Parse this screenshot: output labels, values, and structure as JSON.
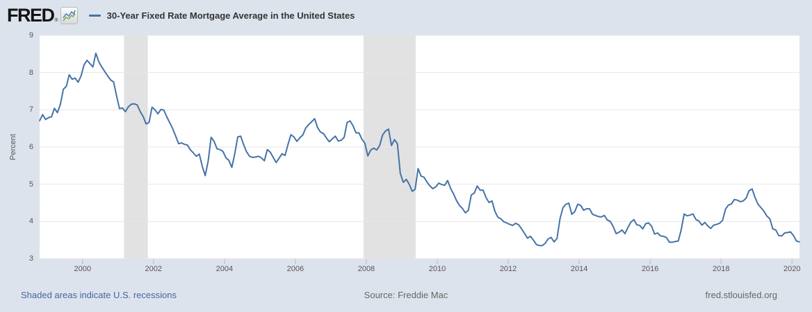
{
  "header": {
    "logo_text": "FRED",
    "logo_registered": "®",
    "legend": {
      "label": "30-Year Fixed Rate Mortgage Average in the United States"
    }
  },
  "footer": {
    "recession_note": "Shaded areas indicate U.S. recessions",
    "source": "Source: Freddie Mac",
    "site": "fred.stlouisfed.org"
  },
  "colors": {
    "background": "#dde3ed",
    "plot_background": "#ffffff",
    "gridline": "#e6e6e6",
    "recession_band": "#e2e2e2",
    "line": "#4572a7",
    "axis_text": "#555555",
    "legend_text": "#333333",
    "link_text": "#44689d",
    "muted_text": "#666666",
    "tick_mark": "#b0b9c7"
  },
  "chart_data": {
    "type": "line",
    "title": "30-Year Fixed Rate Mortgage Average in the United States",
    "xlabel": "",
    "ylabel": "Percent",
    "ylim": [
      3,
      9
    ],
    "xlim": [
      1998.79,
      2020.21
    ],
    "y_ticks": [
      9,
      8,
      7,
      6,
      5,
      4,
      3
    ],
    "x_ticks": [
      2000,
      2002,
      2004,
      2006,
      2008,
      2010,
      2012,
      2014,
      2016,
      2018,
      2020
    ],
    "grid": "horizontal",
    "legend_position": "top",
    "line_color": "#4572a7",
    "recession_bands": [
      {
        "start": 2001.17,
        "end": 2001.84
      },
      {
        "start": 2007.92,
        "end": 2009.39
      }
    ],
    "series": [
      {
        "name": "30-Year Fixed Rate Mortgage Average in the United States",
        "units": "Percent",
        "points": [
          [
            1998.792,
            6.71
          ],
          [
            1998.875,
            6.87
          ],
          [
            1998.958,
            6.74
          ],
          [
            1999.042,
            6.79
          ],
          [
            1999.125,
            6.81
          ],
          [
            1999.208,
            7.04
          ],
          [
            1999.292,
            6.92
          ],
          [
            1999.375,
            7.15
          ],
          [
            1999.458,
            7.55
          ],
          [
            1999.542,
            7.63
          ],
          [
            1999.625,
            7.94
          ],
          [
            1999.708,
            7.82
          ],
          [
            1999.792,
            7.85
          ],
          [
            1999.875,
            7.74
          ],
          [
            1999.958,
            7.91
          ],
          [
            2000.042,
            8.21
          ],
          [
            2000.125,
            8.33
          ],
          [
            2000.208,
            8.24
          ],
          [
            2000.292,
            8.15
          ],
          [
            2000.375,
            8.52
          ],
          [
            2000.458,
            8.29
          ],
          [
            2000.542,
            8.15
          ],
          [
            2000.625,
            8.03
          ],
          [
            2000.708,
            7.91
          ],
          [
            2000.792,
            7.8
          ],
          [
            2000.875,
            7.75
          ],
          [
            2000.958,
            7.38
          ],
          [
            2001.042,
            7.03
          ],
          [
            2001.125,
            7.05
          ],
          [
            2001.208,
            6.95
          ],
          [
            2001.292,
            7.08
          ],
          [
            2001.375,
            7.15
          ],
          [
            2001.458,
            7.16
          ],
          [
            2001.542,
            7.13
          ],
          [
            2001.625,
            6.95
          ],
          [
            2001.708,
            6.82
          ],
          [
            2001.792,
            6.62
          ],
          [
            2001.875,
            6.66
          ],
          [
            2001.958,
            7.07
          ],
          [
            2002.042,
            7.0
          ],
          [
            2002.125,
            6.89
          ],
          [
            2002.208,
            7.01
          ],
          [
            2002.292,
            6.99
          ],
          [
            2002.375,
            6.81
          ],
          [
            2002.458,
            6.65
          ],
          [
            2002.542,
            6.49
          ],
          [
            2002.625,
            6.29
          ],
          [
            2002.708,
            6.09
          ],
          [
            2002.792,
            6.11
          ],
          [
            2002.875,
            6.07
          ],
          [
            2002.958,
            6.05
          ],
          [
            2003.042,
            5.92
          ],
          [
            2003.125,
            5.84
          ],
          [
            2003.208,
            5.75
          ],
          [
            2003.292,
            5.81
          ],
          [
            2003.375,
            5.48
          ],
          [
            2003.458,
            5.23
          ],
          [
            2003.542,
            5.63
          ],
          [
            2003.625,
            6.26
          ],
          [
            2003.708,
            6.15
          ],
          [
            2003.792,
            5.95
          ],
          [
            2003.875,
            5.93
          ],
          [
            2003.958,
            5.88
          ],
          [
            2004.042,
            5.71
          ],
          [
            2004.125,
            5.64
          ],
          [
            2004.208,
            5.45
          ],
          [
            2004.292,
            5.83
          ],
          [
            2004.375,
            6.27
          ],
          [
            2004.458,
            6.29
          ],
          [
            2004.542,
            6.06
          ],
          [
            2004.625,
            5.87
          ],
          [
            2004.708,
            5.75
          ],
          [
            2004.792,
            5.72
          ],
          [
            2004.875,
            5.73
          ],
          [
            2004.958,
            5.75
          ],
          [
            2005.042,
            5.71
          ],
          [
            2005.125,
            5.63
          ],
          [
            2005.208,
            5.93
          ],
          [
            2005.292,
            5.86
          ],
          [
            2005.375,
            5.72
          ],
          [
            2005.458,
            5.58
          ],
          [
            2005.542,
            5.7
          ],
          [
            2005.625,
            5.82
          ],
          [
            2005.708,
            5.77
          ],
          [
            2005.792,
            6.07
          ],
          [
            2005.875,
            6.33
          ],
          [
            2005.958,
            6.27
          ],
          [
            2006.042,
            6.15
          ],
          [
            2006.125,
            6.25
          ],
          [
            2006.208,
            6.32
          ],
          [
            2006.292,
            6.51
          ],
          [
            2006.375,
            6.6
          ],
          [
            2006.458,
            6.68
          ],
          [
            2006.542,
            6.76
          ],
          [
            2006.625,
            6.52
          ],
          [
            2006.708,
            6.4
          ],
          [
            2006.792,
            6.36
          ],
          [
            2006.875,
            6.24
          ],
          [
            2006.958,
            6.14
          ],
          [
            2007.042,
            6.22
          ],
          [
            2007.125,
            6.29
          ],
          [
            2007.208,
            6.16
          ],
          [
            2007.292,
            6.18
          ],
          [
            2007.375,
            6.26
          ],
          [
            2007.458,
            6.66
          ],
          [
            2007.542,
            6.7
          ],
          [
            2007.625,
            6.57
          ],
          [
            2007.708,
            6.38
          ],
          [
            2007.792,
            6.38
          ],
          [
            2007.875,
            6.21
          ],
          [
            2007.958,
            6.1
          ],
          [
            2008.042,
            5.76
          ],
          [
            2008.125,
            5.92
          ],
          [
            2008.208,
            5.97
          ],
          [
            2008.292,
            5.92
          ],
          [
            2008.375,
            6.04
          ],
          [
            2008.458,
            6.32
          ],
          [
            2008.542,
            6.43
          ],
          [
            2008.625,
            6.48
          ],
          [
            2008.708,
            6.04
          ],
          [
            2008.792,
            6.2
          ],
          [
            2008.875,
            6.09
          ],
          [
            2008.958,
            5.29
          ],
          [
            2009.042,
            5.05
          ],
          [
            2009.125,
            5.13
          ],
          [
            2009.208,
            5.0
          ],
          [
            2009.292,
            4.81
          ],
          [
            2009.375,
            4.86
          ],
          [
            2009.458,
            5.42
          ],
          [
            2009.542,
            5.22
          ],
          [
            2009.625,
            5.19
          ],
          [
            2009.708,
            5.06
          ],
          [
            2009.792,
            4.95
          ],
          [
            2009.875,
            4.88
          ],
          [
            2009.958,
            4.93
          ],
          [
            2010.042,
            5.03
          ],
          [
            2010.125,
            4.99
          ],
          [
            2010.208,
            4.97
          ],
          [
            2010.292,
            5.1
          ],
          [
            2010.375,
            4.89
          ],
          [
            2010.458,
            4.74
          ],
          [
            2010.542,
            4.56
          ],
          [
            2010.625,
            4.43
          ],
          [
            2010.708,
            4.35
          ],
          [
            2010.792,
            4.23
          ],
          [
            2010.875,
            4.3
          ],
          [
            2010.958,
            4.71
          ],
          [
            2011.042,
            4.76
          ],
          [
            2011.125,
            4.95
          ],
          [
            2011.208,
            4.84
          ],
          [
            2011.292,
            4.84
          ],
          [
            2011.375,
            4.64
          ],
          [
            2011.458,
            4.51
          ],
          [
            2011.542,
            4.55
          ],
          [
            2011.625,
            4.27
          ],
          [
            2011.708,
            4.11
          ],
          [
            2011.792,
            4.07
          ],
          [
            2011.875,
            3.99
          ],
          [
            2011.958,
            3.96
          ],
          [
            2012.042,
            3.92
          ],
          [
            2012.125,
            3.89
          ],
          [
            2012.208,
            3.95
          ],
          [
            2012.292,
            3.91
          ],
          [
            2012.375,
            3.8
          ],
          [
            2012.458,
            3.68
          ],
          [
            2012.542,
            3.55
          ],
          [
            2012.625,
            3.6
          ],
          [
            2012.708,
            3.5
          ],
          [
            2012.792,
            3.38
          ],
          [
            2012.875,
            3.35
          ],
          [
            2012.958,
            3.35
          ],
          [
            2013.042,
            3.41
          ],
          [
            2013.125,
            3.53
          ],
          [
            2013.208,
            3.57
          ],
          [
            2013.292,
            3.45
          ],
          [
            2013.375,
            3.54
          ],
          [
            2013.458,
            4.07
          ],
          [
            2013.542,
            4.37
          ],
          [
            2013.625,
            4.46
          ],
          [
            2013.708,
            4.49
          ],
          [
            2013.792,
            4.19
          ],
          [
            2013.875,
            4.26
          ],
          [
            2013.958,
            4.46
          ],
          [
            2014.042,
            4.43
          ],
          [
            2014.125,
            4.3
          ],
          [
            2014.208,
            4.34
          ],
          [
            2014.292,
            4.34
          ],
          [
            2014.375,
            4.19
          ],
          [
            2014.458,
            4.16
          ],
          [
            2014.542,
            4.13
          ],
          [
            2014.625,
            4.12
          ],
          [
            2014.708,
            4.16
          ],
          [
            2014.792,
            4.04
          ],
          [
            2014.875,
            4.0
          ],
          [
            2014.958,
            3.86
          ],
          [
            2015.042,
            3.67
          ],
          [
            2015.125,
            3.71
          ],
          [
            2015.208,
            3.77
          ],
          [
            2015.292,
            3.67
          ],
          [
            2015.375,
            3.84
          ],
          [
            2015.458,
            3.98
          ],
          [
            2015.542,
            4.05
          ],
          [
            2015.625,
            3.91
          ],
          [
            2015.708,
            3.89
          ],
          [
            2015.792,
            3.8
          ],
          [
            2015.875,
            3.94
          ],
          [
            2015.958,
            3.96
          ],
          [
            2016.042,
            3.87
          ],
          [
            2016.125,
            3.66
          ],
          [
            2016.208,
            3.69
          ],
          [
            2016.292,
            3.61
          ],
          [
            2016.375,
            3.6
          ],
          [
            2016.458,
            3.57
          ],
          [
            2016.542,
            3.44
          ],
          [
            2016.625,
            3.44
          ],
          [
            2016.708,
            3.46
          ],
          [
            2016.792,
            3.47
          ],
          [
            2016.875,
            3.77
          ],
          [
            2016.958,
            4.2
          ],
          [
            2017.042,
            4.15
          ],
          [
            2017.125,
            4.17
          ],
          [
            2017.208,
            4.2
          ],
          [
            2017.292,
            4.05
          ],
          [
            2017.375,
            4.01
          ],
          [
            2017.458,
            3.9
          ],
          [
            2017.542,
            3.97
          ],
          [
            2017.625,
            3.88
          ],
          [
            2017.708,
            3.81
          ],
          [
            2017.792,
            3.9
          ],
          [
            2017.875,
            3.92
          ],
          [
            2017.958,
            3.95
          ],
          [
            2018.042,
            4.03
          ],
          [
            2018.125,
            4.33
          ],
          [
            2018.208,
            4.44
          ],
          [
            2018.292,
            4.47
          ],
          [
            2018.375,
            4.59
          ],
          [
            2018.458,
            4.57
          ],
          [
            2018.542,
            4.53
          ],
          [
            2018.625,
            4.55
          ],
          [
            2018.708,
            4.63
          ],
          [
            2018.792,
            4.83
          ],
          [
            2018.875,
            4.87
          ],
          [
            2018.958,
            4.64
          ],
          [
            2019.042,
            4.46
          ],
          [
            2019.125,
            4.37
          ],
          [
            2019.208,
            4.27
          ],
          [
            2019.292,
            4.14
          ],
          [
            2019.375,
            4.07
          ],
          [
            2019.458,
            3.8
          ],
          [
            2019.542,
            3.77
          ],
          [
            2019.625,
            3.62
          ],
          [
            2019.708,
            3.61
          ],
          [
            2019.792,
            3.69
          ],
          [
            2019.875,
            3.7
          ],
          [
            2019.958,
            3.72
          ],
          [
            2020.042,
            3.62
          ],
          [
            2020.125,
            3.47
          ],
          [
            2020.208,
            3.45
          ]
        ]
      }
    ]
  }
}
